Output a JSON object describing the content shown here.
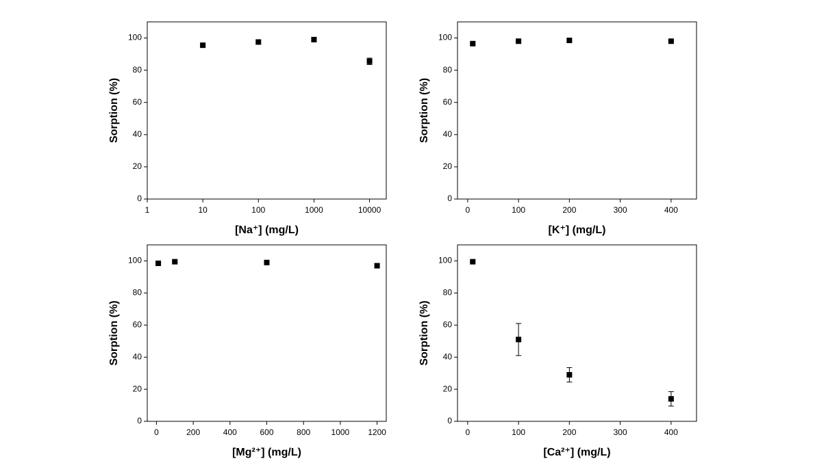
{
  "chart_data": [
    {
      "type": "scatter",
      "x_label": "[Na⁺] (mg/L)",
      "y_label": "Sorption (%)",
      "x_scale": "log",
      "color": "#000000",
      "x": [
        10,
        100,
        1000,
        10000
      ],
      "values": [
        95.5,
        97.5,
        99,
        85.5
      ],
      "errors": [
        0.5,
        1,
        1,
        2
      ],
      "xlim": [
        1,
        20000
      ],
      "xticks": [
        1,
        10,
        100,
        1000,
        10000
      ],
      "ylim": [
        0,
        110
      ],
      "yticks": [
        0,
        20,
        40,
        60,
        80,
        100
      ]
    },
    {
      "type": "scatter",
      "x_label": "[K⁺] (mg/L)",
      "y_label": "Sorption (%)",
      "color": "#000000",
      "x": [
        10,
        100,
        200,
        400
      ],
      "values": [
        96.5,
        98,
        98.5,
        98
      ],
      "errors": [
        0.5,
        0.5,
        0.5,
        0.5
      ],
      "xlim": [
        -20,
        450
      ],
      "xticks": [
        0,
        100,
        200,
        300,
        400
      ],
      "ylim": [
        0,
        110
      ],
      "yticks": [
        0,
        20,
        40,
        60,
        80,
        100
      ]
    },
    {
      "type": "scatter",
      "x_label": "[Mg²⁺] (mg/L)",
      "y_label": "Sorption (%)",
      "color": "#000000",
      "x": [
        10,
        100,
        600,
        1200
      ],
      "values": [
        98.5,
        99.5,
        99,
        97
      ],
      "errors": [
        0.5,
        0.5,
        0.5,
        1
      ],
      "xlim": [
        -50,
        1250
      ],
      "xticks": [
        0,
        200,
        400,
        600,
        800,
        1000,
        1200
      ],
      "ylim": [
        0,
        110
      ],
      "yticks": [
        0,
        20,
        40,
        60,
        80,
        100
      ]
    },
    {
      "type": "scatter",
      "x_label": "[Ca²⁺] (mg/L)",
      "y_label": "Sorption (%)",
      "color": "#000000",
      "x": [
        10,
        100,
        200,
        400
      ],
      "values": [
        99.5,
        51,
        29,
        14
      ],
      "errors": [
        0.5,
        10,
        4.5,
        4.5
      ],
      "xlim": [
        -20,
        450
      ],
      "xticks": [
        0,
        100,
        200,
        300,
        400
      ],
      "ylim": [
        0,
        110
      ],
      "yticks": [
        0,
        20,
        40,
        60,
        80,
        100
      ]
    }
  ]
}
